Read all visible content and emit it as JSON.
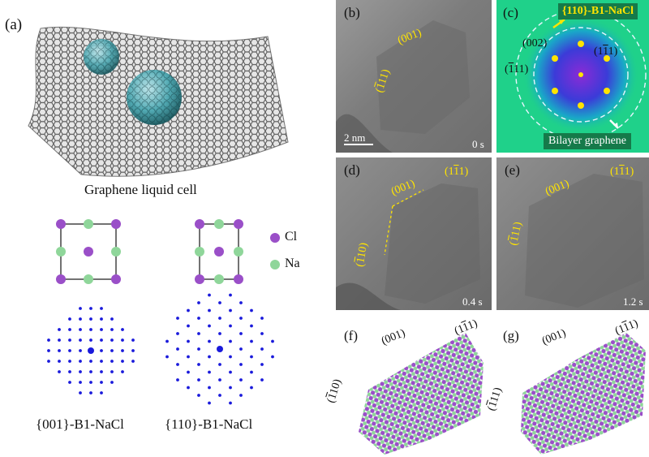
{
  "panels": {
    "a": {
      "letter": "(a)",
      "caption": "Graphene liquid cell",
      "legend": [
        {
          "label": "Cl",
          "color": "#9a4fc8"
        },
        {
          "label": "Na",
          "color": "#8fd69a"
        }
      ],
      "patterns": [
        {
          "caption": "{001}-B1-NaCl"
        },
        {
          "caption": "{110}-B1-NaCl"
        }
      ]
    },
    "b": {
      "letter": "(b)",
      "time": "0 s",
      "scale": "2 nm",
      "tags": [
        {
          "text": "(001)"
        },
        {
          "pre": "(",
          "ov": "1",
          "post": "11)"
        }
      ]
    },
    "c": {
      "letter": "(c)",
      "title": "{110}-B1-NaCl",
      "bottom": "Bilayer graphene",
      "tags": [
        {
          "text": "(002)"
        },
        {
          "pre": "(1",
          "ov": "1",
          "post": "1)"
        },
        {
          "pre": "(",
          "ov": "1",
          "post": "11)"
        }
      ]
    },
    "d": {
      "letter": "(d)",
      "time": "0.4 s",
      "tags": [
        {
          "text": "(001)"
        },
        {
          "pre": "(1",
          "ov": "1",
          "post": "1)"
        },
        {
          "pre": "(",
          "ov": "1",
          "post": "10)"
        }
      ]
    },
    "e": {
      "letter": "(e)",
      "time": "1.2 s",
      "tags": [
        {
          "text": "(001)"
        },
        {
          "pre": "(1",
          "ov": "1",
          "post": "1)"
        },
        {
          "pre": "(",
          "ov": "1",
          "post": "11)"
        }
      ]
    },
    "f": {
      "letter": "(f)",
      "tags": [
        {
          "text": "(001)"
        },
        {
          "pre": "(1",
          "ov": "1",
          "post": "1)"
        },
        {
          "pre": "(",
          "ov": "1",
          "post": "10)"
        }
      ]
    },
    "g": {
      "letter": "(g)",
      "tags": [
        {
          "text": "(001)"
        },
        {
          "pre": "(1",
          "ov": "1",
          "post": "1)"
        },
        {
          "pre": "(",
          "ov": "1",
          "post": "11)"
        }
      ]
    }
  },
  "colors": {
    "yellow": "#ffe400",
    "cl": "#9a4fc8",
    "na": "#8fd69a",
    "lattice": "#1a1adb",
    "fft_bg": "#1fd18a"
  }
}
